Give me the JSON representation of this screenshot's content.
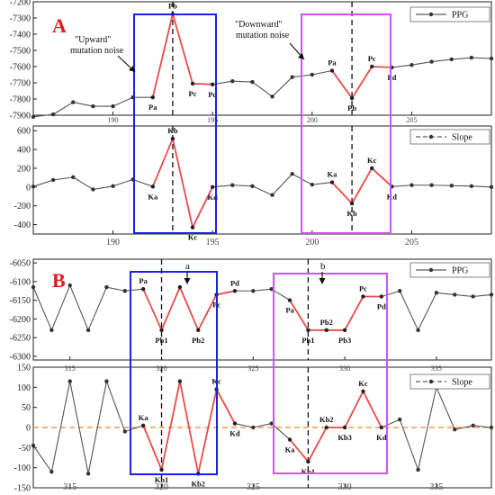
{
  "figure": {
    "panel_a_letter": "A",
    "panel_b_letter": "B"
  },
  "colors": {
    "gray_line": "#555555",
    "red_line": "#ea4a4a",
    "blue_box": "#1a22e6",
    "magenta_box": "#cc55ee",
    "orange_zero": "#ff7f2a",
    "panel_letter": "#e51a1a"
  },
  "chart_data": [
    {
      "id": "A-top",
      "type": "line",
      "legend": "PPG",
      "legend_position": "top-right",
      "xlim": [
        186,
        209
      ],
      "ylim": [
        -7900,
        -7200
      ],
      "xticks": [
        190,
        195,
        200,
        205
      ],
      "yticks": [
        -7900,
        -7800,
        -7700,
        -7600,
        -7500,
        -7400,
        -7300,
        -7200
      ],
      "x": [
        186,
        187,
        188,
        189,
        190,
        191,
        192,
        193,
        194,
        195,
        196,
        197,
        198,
        199,
        200,
        201,
        202,
        203,
        204,
        205,
        206,
        207,
        208,
        209
      ],
      "y": [
        -7910,
        -7895,
        -7820,
        -7845,
        -7845,
        -7790,
        -7790,
        -7275,
        -7705,
        -7710,
        -7690,
        -7695,
        -7785,
        -7665,
        -7650,
        -7625,
        -7795,
        -7600,
        -7605,
        -7590,
        -7570,
        -7555,
        -7545,
        -7550
      ],
      "highlight_ranges": [
        [
          192,
          195
        ],
        [
          201,
          204
        ]
      ],
      "point_labels": [
        {
          "x": 192,
          "text": "Pa"
        },
        {
          "x": 193,
          "text": "Pb"
        },
        {
          "x": 194,
          "text": "Pc"
        },
        {
          "x": 195,
          "text": "Pd"
        },
        {
          "x": 201,
          "text": "Pa"
        },
        {
          "x": 202,
          "text": "Pb"
        },
        {
          "x": 203,
          "text": "Pc"
        },
        {
          "x": 204,
          "text": "Pd"
        }
      ],
      "annotations": [
        {
          "text": "\"Upward\"",
          "near_x": 190
        },
        {
          "text": "mutation noise",
          "near_x": 190
        },
        {
          "text": "\"Downward\"",
          "near_x": 199
        },
        {
          "text": "mutation noise",
          "near_x": 199
        }
      ],
      "vlines": [
        193,
        202
      ]
    },
    {
      "id": "A-bottom",
      "type": "line",
      "legend": "Slope",
      "legend_position": "top-right",
      "xlim": [
        186,
        209
      ],
      "ylim": [
        -500,
        650
      ],
      "xticks": [
        190,
        195,
        200,
        205
      ],
      "yticks": [
        -400,
        -200,
        0,
        200,
        400,
        600
      ],
      "x": [
        186,
        187,
        188,
        189,
        190,
        191,
        192,
        193,
        194,
        195,
        196,
        197,
        198,
        199,
        200,
        201,
        202,
        203,
        204,
        205,
        206,
        207,
        208,
        209
      ],
      "y": [
        5,
        75,
        105,
        -25,
        10,
        80,
        5,
        515,
        -430,
        0,
        20,
        10,
        -85,
        140,
        25,
        50,
        -175,
        200,
        5,
        20,
        20,
        15,
        10,
        0
      ],
      "highlight_ranges": [
        [
          192,
          195
        ],
        [
          201,
          204
        ]
      ],
      "point_labels": [
        {
          "x": 192,
          "text": "Ka"
        },
        {
          "x": 193,
          "text": "Kb"
        },
        {
          "x": 194,
          "text": "Kc"
        },
        {
          "x": 195,
          "text": "Kd"
        },
        {
          "x": 201,
          "text": "Ka"
        },
        {
          "x": 202,
          "text": "Kb"
        },
        {
          "x": 203,
          "text": "Kc"
        },
        {
          "x": 204,
          "text": "Kd"
        }
      ],
      "vlines": [
        193,
        202
      ]
    },
    {
      "id": "B-top",
      "type": "line",
      "legend": "PPG",
      "legend_position": "top-right",
      "xlim": [
        313,
        338
      ],
      "ylim": [
        -6310,
        -6040
      ],
      "xticks": [
        315,
        320,
        325,
        330,
        335
      ],
      "yticks": [
        -6300,
        -6250,
        -6200,
        -6150,
        -6100,
        -6050
      ],
      "x": [
        313,
        314,
        315,
        316,
        317,
        318,
        319,
        320,
        321,
        322,
        323,
        324,
        325,
        326,
        327,
        328,
        329,
        330,
        331,
        332,
        333,
        334,
        335,
        336,
        337,
        338
      ],
      "y": [
        -6115,
        -6230,
        -6110,
        -6230,
        -6115,
        -6125,
        -6120,
        -6230,
        -6115,
        -6230,
        -6135,
        -6125,
        -6125,
        -6120,
        -6150,
        -6230,
        -6230,
        -6230,
        -6140,
        -6140,
        -6125,
        -6230,
        -6130,
        -6135,
        -6140,
        -6135
      ],
      "highlight_ranges": [
        [
          319,
          324
        ],
        [
          327,
          332
        ]
      ],
      "point_labels": [
        {
          "x": 319,
          "text": "Pa"
        },
        {
          "x": 320,
          "text": "Pb1"
        },
        {
          "x": 322,
          "text": "Pb2"
        },
        {
          "x": 323,
          "text": "Pc"
        },
        {
          "x": 324,
          "text": "Pd"
        },
        {
          "x": 327,
          "text": "Pa"
        },
        {
          "x": 328,
          "text": "Pb1"
        },
        {
          "x": 329,
          "text": "Pb2"
        },
        {
          "x": 330,
          "text": "Pb3"
        },
        {
          "x": 331,
          "text": "Pc"
        },
        {
          "x": 332,
          "text": "Pd"
        }
      ],
      "annotations": [
        {
          "text": "a",
          "near_x": 321
        },
        {
          "text": "b",
          "near_x": 329
        }
      ],
      "vlines": [
        320,
        328
      ]
    },
    {
      "id": "B-bottom",
      "type": "line",
      "legend": "Slope",
      "legend_position": "top-right",
      "xlim": [
        313,
        338
      ],
      "ylim": [
        -150,
        150
      ],
      "xticks": [
        315,
        320,
        325,
        330,
        335
      ],
      "yticks": [
        -150,
        -100,
        -50,
        0,
        50,
        100,
        150
      ],
      "x": [
        313,
        314,
        315,
        316,
        317,
        318,
        319,
        320,
        321,
        322,
        323,
        324,
        325,
        326,
        327,
        328,
        329,
        330,
        331,
        332,
        333,
        334,
        335,
        336,
        337,
        338
      ],
      "y": [
        -45,
        -110,
        115,
        -115,
        115,
        -10,
        5,
        -105,
        115,
        -115,
        95,
        10,
        0,
        10,
        -30,
        -85,
        0,
        0,
        90,
        0,
        20,
        -105,
        100,
        -5,
        5,
        0
      ],
      "zero_line": true,
      "highlight_ranges": [
        [
          319,
          324
        ],
        [
          327,
          332
        ]
      ],
      "point_labels": [
        {
          "x": 319,
          "text": "Ka"
        },
        {
          "x": 320,
          "text": "Kb1"
        },
        {
          "x": 322,
          "text": "Kb2"
        },
        {
          "x": 323,
          "text": "Kc"
        },
        {
          "x": 324,
          "text": "Kd"
        },
        {
          "x": 327,
          "text": "Ka"
        },
        {
          "x": 328,
          "text": "Kb1"
        },
        {
          "x": 329,
          "text": "Kb2"
        },
        {
          "x": 330,
          "text": "Kb3"
        },
        {
          "x": 331,
          "text": "Kc"
        },
        {
          "x": 332,
          "text": "Kd"
        }
      ],
      "vlines": [
        320,
        328
      ]
    }
  ]
}
